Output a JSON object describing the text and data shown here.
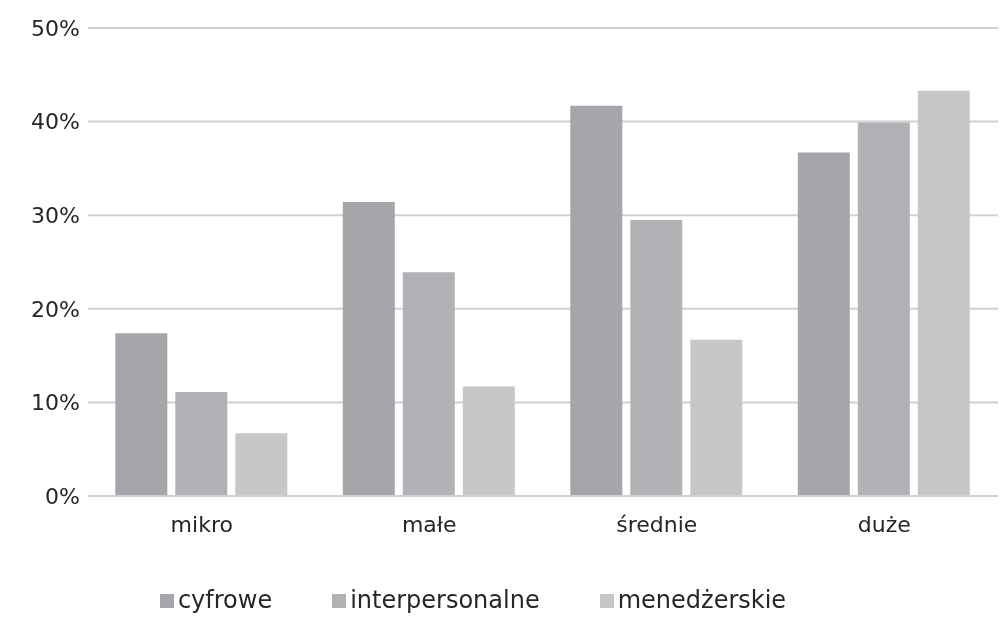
{
  "chart_data": {
    "type": "bar",
    "categories": [
      "mikro",
      "małe",
      "średnie",
      "duże"
    ],
    "series": [
      {
        "name": "cyfrowe",
        "color": "#a5a6aa",
        "values": [
          17.4,
          31.4,
          41.7,
          36.7
        ]
      },
      {
        "name": "interpersonalne",
        "color": "#b1b2b5",
        "values": [
          11.1,
          23.9,
          29.5,
          39.9
        ]
      },
      {
        "name": "menedżerskie",
        "color": "#c6c7c9",
        "values": [
          6.7,
          11.7,
          16.7,
          43.3
        ]
      }
    ],
    "ylim": [
      0,
      50
    ],
    "yticks": [
      {
        "value": 0,
        "label": "0%"
      },
      {
        "value": 10,
        "label": "10%"
      },
      {
        "value": 20,
        "label": "20%"
      },
      {
        "value": 30,
        "label": "30%"
      },
      {
        "value": 40,
        "label": "40%"
      },
      {
        "value": 50,
        "label": "50%"
      }
    ],
    "grid": "y",
    "legend": "bottom"
  }
}
